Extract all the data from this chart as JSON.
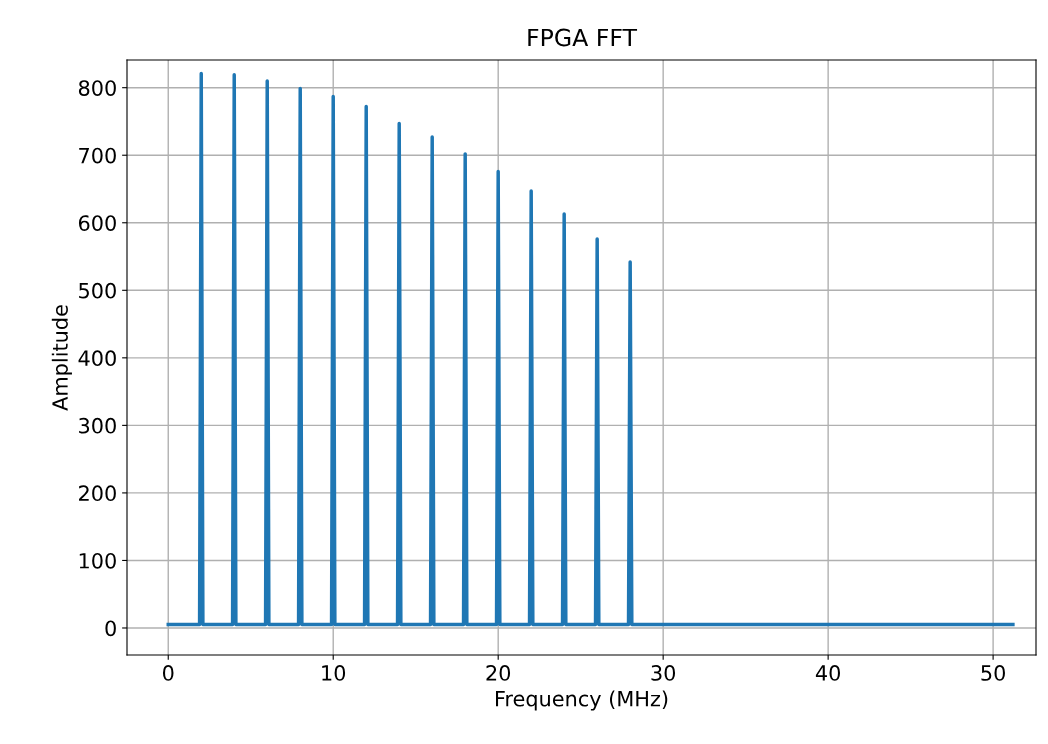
{
  "chart_data": {
    "type": "line",
    "title": "FPGA FFT",
    "xlabel": "Frequency (MHz)",
    "ylabel": "Amplitude",
    "series": [
      {
        "color": "#1f77b4",
        "x": [
          0,
          1.9,
          2,
          2.1,
          3.9,
          4,
          4.1,
          5.9,
          6,
          6.1,
          7.9,
          8,
          8.1,
          9.9,
          10,
          10.1,
          11.9,
          12,
          12.1,
          13.9,
          14,
          14.1,
          15.9,
          16,
          16.1,
          17.9,
          18,
          18.1,
          19.9,
          20,
          20.1,
          21.9,
          22,
          22.1,
          23.9,
          24,
          24.1,
          25.9,
          26,
          26.1,
          27.9,
          28,
          28.1,
          51.2
        ],
        "values": [
          5,
          5,
          821,
          5,
          5,
          819,
          5,
          5,
          810,
          5,
          5,
          799,
          5,
          5,
          787,
          5,
          5,
          772,
          5,
          5,
          747,
          5,
          5,
          727,
          5,
          5,
          702,
          5,
          5,
          676,
          5,
          5,
          647,
          5,
          5,
          613,
          5,
          5,
          576,
          5,
          5,
          542,
          5,
          5
        ]
      }
    ],
    "xlim": [
      -2.5,
      52.6
    ],
    "ylim": [
      -40,
      841
    ],
    "xticks": [
      0,
      10,
      20,
      30,
      40,
      50
    ],
    "yticks": [
      0,
      100,
      200,
      300,
      400,
      500,
      600,
      700,
      800
    ],
    "grid": true,
    "legend": false
  }
}
